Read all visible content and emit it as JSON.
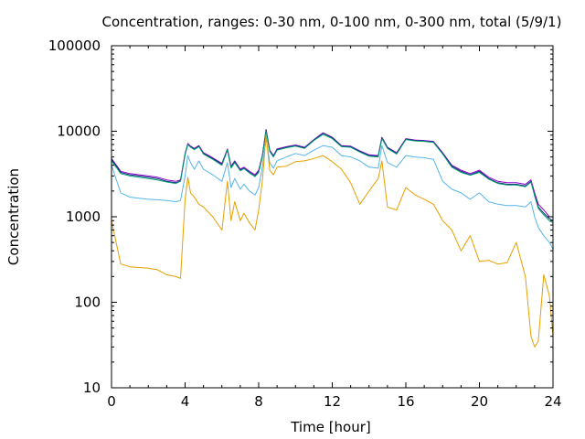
{
  "chart_data": {
    "type": "line",
    "title": "Concentration, ranges: 0-30 nm, 0-100 nm, 0-300 nm, total (5/9/1)",
    "xlabel": "Time [hour]",
    "ylabel": "Concentration",
    "xlim": [
      0,
      24
    ],
    "ylim": [
      10,
      100000
    ],
    "yscale": "log",
    "grid": false,
    "legend": "none",
    "x_ticks": [
      {
        "value": 0,
        "label": "0"
      },
      {
        "value": 4,
        "label": "4"
      },
      {
        "value": 8,
        "label": "8"
      },
      {
        "value": 12,
        "label": "12"
      },
      {
        "value": 16,
        "label": "16"
      },
      {
        "value": 20,
        "label": "20"
      },
      {
        "value": 24,
        "label": "24"
      }
    ],
    "y_ticks": [
      {
        "value": 10,
        "label": "10"
      },
      {
        "value": 100,
        "label": "100"
      },
      {
        "value": 1000,
        "label": "1000"
      },
      {
        "value": 10000,
        "label": "10000"
      },
      {
        "value": 100000,
        "label": "100000"
      }
    ],
    "x": [
      0,
      0.5,
      1,
      1.5,
      2,
      2.5,
      3,
      3.5,
      3.75,
      4,
      4.15,
      4.3,
      4.5,
      4.75,
      5,
      5.5,
      6,
      6.3,
      6.5,
      6.7,
      7,
      7.2,
      7.5,
      7.8,
      8,
      8.2,
      8.4,
      8.6,
      8.8,
      9,
      9.5,
      10,
      10.5,
      11,
      11.5,
      12,
      12.5,
      13,
      13.5,
      14,
      14.5,
      14.7,
      15,
      15.5,
      16,
      16.5,
      17,
      17.5,
      18,
      18.5,
      19,
      19.5,
      20,
      20.5,
      21,
      21.5,
      22,
      22.5,
      22.8,
      23,
      23.2,
      23.5,
      23.8,
      24
    ],
    "series": [
      {
        "color": "#9400d3",
        "values": [
          4800,
          3400,
          3200,
          3100,
          3000,
          2900,
          2700,
          2600,
          2700,
          5500,
          7200,
          6700,
          6300,
          6800,
          5600,
          4900,
          4200,
          6200,
          3900,
          4500,
          3600,
          3800,
          3400,
          3100,
          3500,
          5200,
          10500,
          6000,
          5200,
          6200,
          6600,
          6900,
          6500,
          8000,
          9600,
          8500,
          6800,
          6700,
          5900,
          5300,
          5200,
          8500,
          6500,
          5600,
          8200,
          7900,
          7800,
          7600,
          5600,
          4000,
          3500,
          3200,
          3500,
          2900,
          2600,
          2500,
          2500,
          2400,
          2700,
          1900,
          1400,
          1200,
          1000,
          1000
        ]
      },
      {
        "color": "#0b2a7a",
        "values": [
          4700,
          3300,
          3100,
          3000,
          2900,
          2800,
          2600,
          2500,
          2650,
          5400,
          7000,
          6600,
          6200,
          6700,
          5500,
          4800,
          4100,
          6100,
          3800,
          4400,
          3500,
          3700,
          3300,
          3000,
          3400,
          5100,
          10300,
          5900,
          5100,
          6100,
          6500,
          6800,
          6400,
          7900,
          9500,
          8400,
          6700,
          6600,
          5800,
          5200,
          5100,
          8400,
          6400,
          5500,
          8100,
          7800,
          7700,
          7500,
          5500,
          3900,
          3400,
          3100,
          3400,
          2800,
          2500,
          2400,
          2400,
          2300,
          2600,
          1800,
          1300,
          1100,
          950,
          900
        ]
      },
      {
        "color": "#009e73",
        "values": [
          4500,
          3200,
          3000,
          2900,
          2800,
          2700,
          2550,
          2450,
          2600,
          5300,
          7000,
          6500,
          6100,
          6600,
          5400,
          4700,
          4000,
          6000,
          3700,
          4300,
          3450,
          3650,
          3250,
          2950,
          3300,
          5000,
          10000,
          5800,
          5000,
          6000,
          6400,
          6700,
          6300,
          7800,
          9200,
          8200,
          6600,
          6500,
          5700,
          5100,
          5000,
          8200,
          6300,
          5400,
          8000,
          7700,
          7600,
          7400,
          5400,
          3800,
          3300,
          3050,
          3300,
          2750,
          2450,
          2350,
          2350,
          2250,
          2550,
          1750,
          1250,
          1050,
          900,
          850
        ]
      },
      {
        "color": "#56b4e9",
        "values": [
          4000,
          1900,
          1700,
          1650,
          1600,
          1580,
          1550,
          1500,
          1550,
          3000,
          5200,
          4300,
          3600,
          4500,
          3600,
          3100,
          2600,
          4300,
          2200,
          2800,
          2100,
          2400,
          2000,
          1800,
          2200,
          3800,
          8500,
          4300,
          3700,
          4500,
          5000,
          5500,
          5200,
          6000,
          6800,
          6500,
          5200,
          5000,
          4500,
          3800,
          3700,
          6800,
          4300,
          3800,
          5200,
          5000,
          4900,
          4700,
          2600,
          2100,
          1900,
          1600,
          1900,
          1500,
          1400,
          1350,
          1350,
          1300,
          1500,
          1000,
          750,
          600,
          500,
          420
        ]
      },
      {
        "color": "#e69f00",
        "values": [
          900,
          280,
          260,
          255,
          250,
          240,
          210,
          200,
          190,
          1600,
          2900,
          1900,
          1700,
          1400,
          1300,
          1000,
          700,
          2600,
          900,
          1500,
          900,
          1100,
          850,
          700,
          1200,
          2600,
          9000,
          3500,
          3100,
          3800,
          3900,
          4400,
          4500,
          4800,
          5200,
          4400,
          3600,
          2500,
          1400,
          2000,
          2800,
          4500,
          1300,
          1200,
          2200,
          1800,
          1600,
          1400,
          900,
          700,
          400,
          600,
          300,
          310,
          280,
          290,
          500,
          200,
          40,
          30,
          35,
          210,
          120,
          40
        ]
      }
    ]
  }
}
